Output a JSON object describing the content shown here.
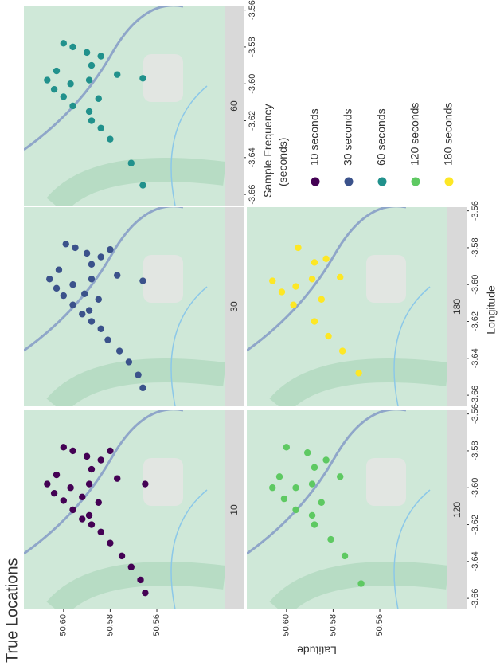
{
  "chart_data": {
    "type": "scatter",
    "title": "True Locations",
    "x_label": "Longitude",
    "y_label": "Latitude",
    "legend_title": "Sample Frequency\n(seconds)",
    "xlim": [
      -3.666,
      -3.558
    ],
    "ylim": [
      50.531,
      50.617
    ],
    "xticks": [
      -3.66,
      -3.64,
      -3.62,
      {
        "value": -3.6,
        "label": "-3.60"
      },
      -3.58,
      -3.56
    ],
    "yticks": [
      {
        "value": 50.6,
        "label": "50.60"
      },
      50.58,
      50.56
    ],
    "series": [
      {
        "name": "10",
        "legend_label": "10 seconds",
        "color": "#440154",
        "x": [
          -3.657,
          -3.65,
          -3.643,
          -3.637,
          -3.63,
          -3.624,
          -3.62,
          -3.617,
          -3.612,
          -3.607,
          -3.603,
          -3.598,
          -3.593,
          -3.6,
          -3.605,
          -3.598,
          -3.59,
          -3.583,
          -3.58,
          -3.578,
          -3.585,
          -3.58,
          -3.595,
          -3.598,
          -3.608,
          -3.615
        ],
        "y": [
          50.565,
          50.567,
          50.571,
          50.575,
          50.58,
          50.584,
          50.588,
          50.592,
          50.596,
          50.6,
          50.604,
          50.607,
          50.603,
          50.597,
          50.592,
          50.589,
          50.588,
          50.59,
          50.596,
          50.6,
          50.584,
          50.58,
          50.577,
          50.565,
          50.585,
          50.589
        ]
      },
      {
        "name": "30",
        "legend_label": "30 seconds",
        "color": "#3b528b",
        "x": [
          -3.656,
          -3.649,
          -3.642,
          -3.636,
          -3.63,
          -3.624,
          -3.62,
          -3.616,
          -3.611,
          -3.606,
          -3.602,
          -3.597,
          -3.592,
          -3.6,
          -3.605,
          -3.597,
          -3.589,
          -3.583,
          -3.58,
          -3.578,
          -3.585,
          -3.581,
          -3.595,
          -3.598,
          -3.608,
          -3.614
        ],
        "y": [
          50.566,
          50.568,
          50.572,
          50.576,
          50.581,
          50.584,
          50.588,
          50.592,
          50.596,
          50.6,
          50.603,
          50.606,
          50.602,
          50.596,
          50.591,
          50.588,
          50.588,
          50.59,
          50.595,
          50.599,
          50.584,
          50.58,
          50.577,
          50.566,
          50.585,
          50.589
        ]
      },
      {
        "name": "60",
        "legend_label": "60 seconds",
        "color": "#21918c",
        "x": [
          -3.655,
          -3.643,
          -3.63,
          -3.624,
          -3.62,
          -3.612,
          -3.607,
          -3.603,
          -3.598,
          -3.593,
          -3.6,
          -3.598,
          -3.59,
          -3.583,
          -3.58,
          -3.578,
          -3.585,
          -3.595,
          -3.597,
          -3.608,
          -3.615
        ],
        "y": [
          50.566,
          50.571,
          50.58,
          50.584,
          50.588,
          50.596,
          50.6,
          50.604,
          50.607,
          50.603,
          50.597,
          50.589,
          50.588,
          50.59,
          50.596,
          50.6,
          50.584,
          50.577,
          50.566,
          50.585,
          50.589
        ]
      },
      {
        "name": "120",
        "legend_label": "120 seconds",
        "color": "#5ec962",
        "x": [
          -3.652,
          -3.637,
          -3.628,
          -3.62,
          -3.612,
          -3.606,
          -3.6,
          -3.594,
          -3.6,
          -3.598,
          -3.589,
          -3.581,
          -3.578,
          -3.585,
          -3.594,
          -3.608,
          -3.615
        ],
        "y": [
          50.568,
          50.575,
          50.581,
          50.588,
          50.596,
          50.601,
          50.606,
          50.603,
          50.596,
          50.589,
          50.588,
          50.591,
          50.6,
          50.583,
          50.577,
          50.585,
          50.589
        ]
      },
      {
        "name": "180",
        "legend_label": "180 seconds",
        "color": "#fde725",
        "x": [
          -3.648,
          -3.636,
          -3.628,
          -3.62,
          -3.611,
          -3.604,
          -3.598,
          -3.601,
          -3.597,
          -3.588,
          -3.58,
          -3.586,
          -3.596,
          -3.608
        ],
        "y": [
          50.569,
          50.576,
          50.582,
          50.588,
          50.597,
          50.602,
          50.606,
          50.596,
          50.589,
          50.588,
          50.595,
          50.583,
          50.577,
          50.585
        ]
      }
    ]
  }
}
